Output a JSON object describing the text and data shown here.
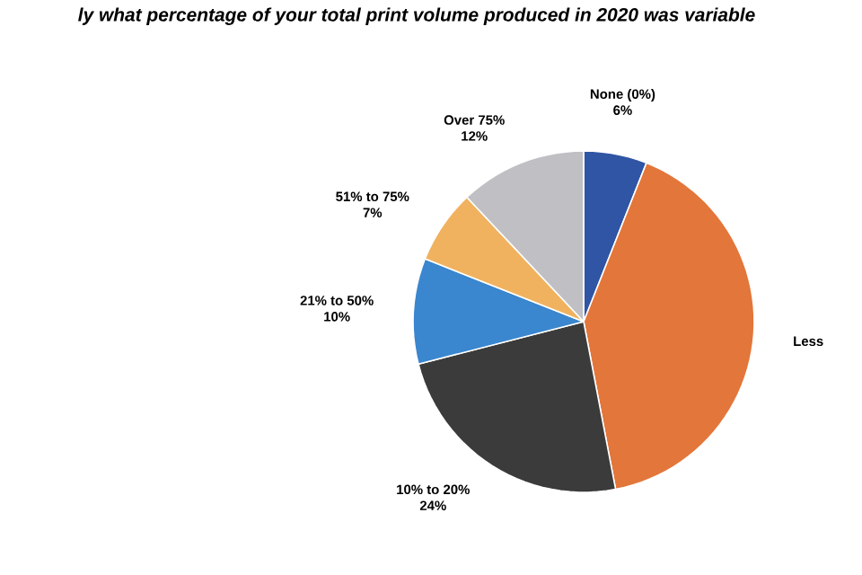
{
  "chart_data": {
    "type": "pie",
    "title": "ly what percentage of your total print volume produced in 2020 was variable",
    "categories": [
      "None (0%)",
      "Less",
      "10% to 20%",
      "21% to 50%",
      "51% to 75%",
      "Over 75%"
    ],
    "values": [
      6,
      41,
      24,
      10,
      7,
      12
    ],
    "colors": [
      "#2f55a4",
      "#e3763a",
      "#3b3b3b",
      "#3a86cf",
      "#f0b25f",
      "#c0c0c4"
    ],
    "value_labels": [
      "6%",
      null,
      "24%",
      "10%",
      "7%",
      "12%"
    ]
  }
}
